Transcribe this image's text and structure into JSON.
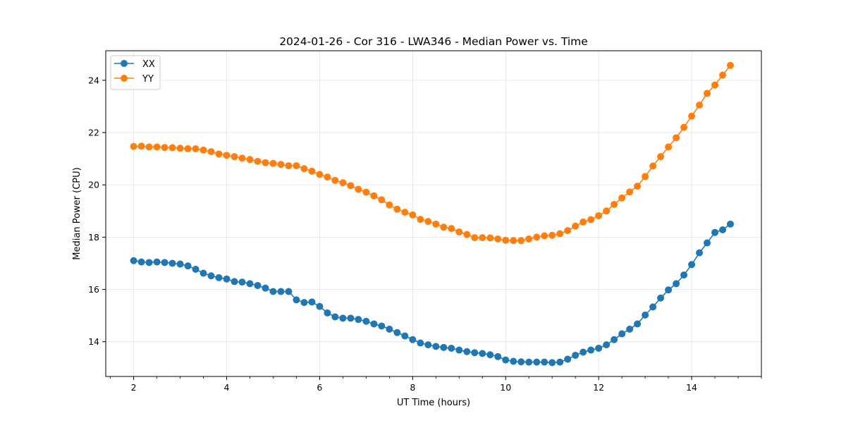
{
  "chart_data": {
    "type": "line",
    "title": "2024-01-26 - Cor 316 - LWA346 - Median Power vs. Time",
    "xlabel": "UT Time (hours)",
    "ylabel": "Median Power (CPU)",
    "xlim": [
      1.4,
      15.5
    ],
    "ylim": [
      12.67,
      25.13
    ],
    "x_ticks": [
      2,
      4,
      6,
      8,
      10,
      12,
      14
    ],
    "x_minor_step": 0.5,
    "y_ticks": [
      14,
      16,
      18,
      20,
      22,
      24
    ],
    "grid": true,
    "legend_position": "top-left",
    "x": [
      2.0,
      2.167,
      2.333,
      2.5,
      2.667,
      2.833,
      3.0,
      3.167,
      3.333,
      3.5,
      3.667,
      3.833,
      4.0,
      4.167,
      4.333,
      4.5,
      4.667,
      4.833,
      5.0,
      5.167,
      5.333,
      5.5,
      5.667,
      5.833,
      6.0,
      6.167,
      6.333,
      6.5,
      6.667,
      6.833,
      7.0,
      7.167,
      7.333,
      7.5,
      7.667,
      7.833,
      8.0,
      8.167,
      8.333,
      8.5,
      8.667,
      8.833,
      9.0,
      9.167,
      9.333,
      9.5,
      9.667,
      9.833,
      10.0,
      10.167,
      10.333,
      10.5,
      10.667,
      10.833,
      11.0,
      11.167,
      11.333,
      11.5,
      11.667,
      11.833,
      12.0,
      12.167,
      12.333,
      12.5,
      12.667,
      12.833,
      13.0,
      13.167,
      13.333,
      13.5,
      13.667,
      13.833,
      14.0,
      14.167,
      14.333,
      14.5,
      14.667,
      14.833
    ],
    "series": [
      {
        "name": "XX",
        "color": "#1f77b4",
        "values": [
          17.1,
          17.05,
          17.03,
          17.05,
          17.03,
          17.0,
          16.97,
          16.9,
          16.77,
          16.62,
          16.52,
          16.45,
          16.4,
          16.3,
          16.28,
          16.22,
          16.15,
          16.05,
          15.92,
          15.92,
          15.92,
          15.6,
          15.5,
          15.52,
          15.35,
          15.1,
          14.95,
          14.9,
          14.9,
          14.85,
          14.78,
          14.68,
          14.6,
          14.48,
          14.35,
          14.22,
          14.08,
          13.95,
          13.88,
          13.82,
          13.78,
          13.75,
          13.68,
          13.62,
          13.58,
          13.55,
          13.5,
          13.43,
          13.3,
          13.25,
          13.23,
          13.22,
          13.22,
          13.22,
          13.2,
          13.22,
          13.33,
          13.48,
          13.6,
          13.68,
          13.75,
          13.88,
          14.08,
          14.3,
          14.48,
          14.68,
          15.02,
          15.33,
          15.67,
          15.98,
          16.22,
          16.55,
          16.95,
          17.4,
          17.78,
          18.18,
          18.28,
          18.5
        ]
      },
      {
        "name": "YY",
        "color": "#ff7f0e",
        "values": [
          21.47,
          21.48,
          21.45,
          21.45,
          21.43,
          21.42,
          21.4,
          21.38,
          21.38,
          21.33,
          21.27,
          21.18,
          21.13,
          21.08,
          21.02,
          20.97,
          20.9,
          20.85,
          20.82,
          20.78,
          20.73,
          20.73,
          20.62,
          20.52,
          20.4,
          20.3,
          20.17,
          20.08,
          19.97,
          19.83,
          19.72,
          19.58,
          19.43,
          19.23,
          19.07,
          18.95,
          18.85,
          18.68,
          18.6,
          18.5,
          18.38,
          18.33,
          18.2,
          18.1,
          17.98,
          17.98,
          17.97,
          17.93,
          17.88,
          17.87,
          17.87,
          17.93,
          18.0,
          18.05,
          18.07,
          18.13,
          18.25,
          18.42,
          18.58,
          18.67,
          18.82,
          19.0,
          19.25,
          19.5,
          19.73,
          19.95,
          20.32,
          20.72,
          21.08,
          21.45,
          21.8,
          22.2,
          22.63,
          23.05,
          23.5,
          23.82,
          24.2,
          24.57
        ]
      }
    ]
  }
}
